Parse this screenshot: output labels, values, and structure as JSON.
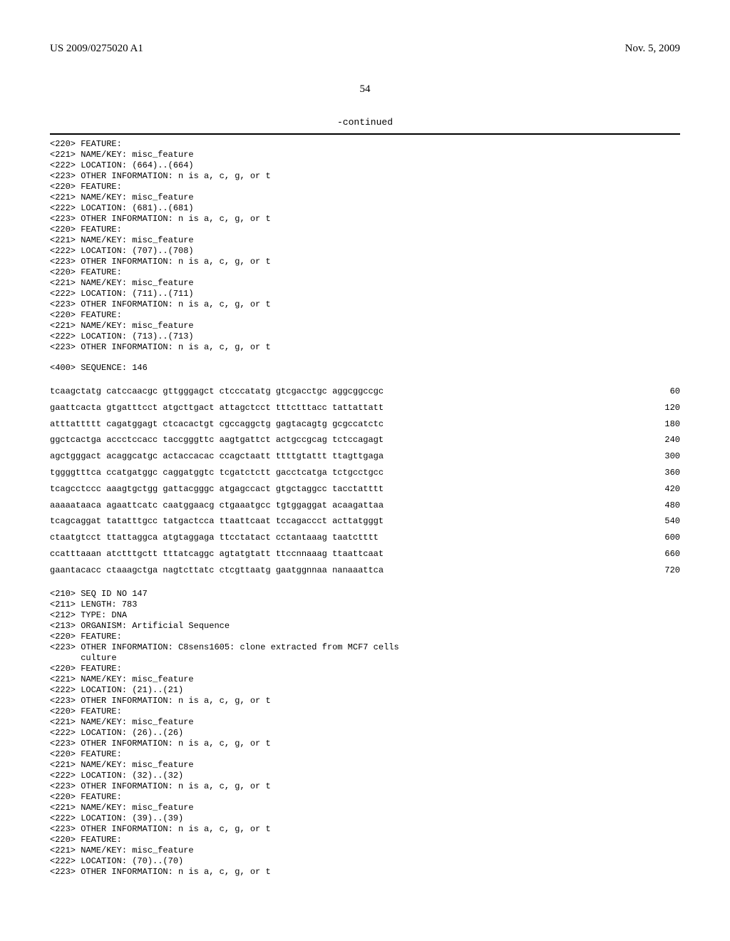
{
  "header": {
    "left": "US 2009/0275020 A1",
    "right": "Nov. 5, 2009"
  },
  "page_number": "54",
  "continued_label": "-continued",
  "features_146": [
    "<220> FEATURE:",
    "<221> NAME/KEY: misc_feature",
    "<222> LOCATION: (664)..(664)",
    "<223> OTHER INFORMATION: n is a, c, g, or t",
    "<220> FEATURE:",
    "<221> NAME/KEY: misc_feature",
    "<222> LOCATION: (681)..(681)",
    "<223> OTHER INFORMATION: n is a, c, g, or t",
    "<220> FEATURE:",
    "<221> NAME/KEY: misc_feature",
    "<222> LOCATION: (707)..(708)",
    "<223> OTHER INFORMATION: n is a, c, g, or t",
    "<220> FEATURE:",
    "<221> NAME/KEY: misc_feature",
    "<222> LOCATION: (711)..(711)",
    "<223> OTHER INFORMATION: n is a, c, g, or t",
    "<220> FEATURE:",
    "<221> NAME/KEY: misc_feature",
    "<222> LOCATION: (713)..(713)",
    "<223> OTHER INFORMATION: n is a, c, g, or t"
  ],
  "sequence_400_label": "<400> SEQUENCE: 146",
  "sequence_146": [
    {
      "seq": "tcaagctatg catccaacgc gttgggagct ctcccatatg gtcgacctgc aggcggccgc",
      "num": "60"
    },
    {
      "seq": "gaattcacta gtgatttcct atgcttgact attagctcct tttctttacc tattattatt",
      "num": "120"
    },
    {
      "seq": "atttattttt cagatggagt ctcacactgt cgccaggctg gagtacagtg gcgccatctc",
      "num": "180"
    },
    {
      "seq": "ggctcactga accctccacc taccgggttc aagtgattct actgccgcag tctccagagt",
      "num": "240"
    },
    {
      "seq": "agctgggact acaggcatgc actaccacac ccagctaatt ttttgtattt ttagttgaga",
      "num": "300"
    },
    {
      "seq": "tggggtttca ccatgatggc caggatggtc tcgatctctt gacctcatga tctgcctgcc",
      "num": "360"
    },
    {
      "seq": "tcagcctccc aaagtgctgg gattacgggc atgagccact gtgctaggcc tacctatttt",
      "num": "420"
    },
    {
      "seq": "aaaaataaca agaattcatc caatggaacg ctgaaatgcc tgtggaggat acaagattaa",
      "num": "480"
    },
    {
      "seq": "tcagcaggat tatatttgcc tatgactcca ttaattcaat tccagaccct acttatgggt",
      "num": "540"
    },
    {
      "seq": "ctaatgtcct ttattaggca atgtaggaga ttcctatact cctantaaag taatctttt",
      "num": "600"
    },
    {
      "seq": "ccatttaaan atctttgctt tttatcaggc agtatgtatt ttccnnaaag ttaattcaat",
      "num": "660"
    },
    {
      "seq": "gaantacacc ctaaagctga nagtcttatc ctcgttaatg gaatggnnaa nanaaattca",
      "num": "720"
    }
  ],
  "seq_147_header": [
    "<210> SEQ ID NO 147",
    "<211> LENGTH: 783",
    "<212> TYPE: DNA",
    "<213> ORGANISM: Artificial Sequence",
    "<220> FEATURE:",
    "<223> OTHER INFORMATION: C8sens1605: clone extracted from MCF7 cells",
    "      culture",
    "<220> FEATURE:",
    "<221> NAME/KEY: misc_feature",
    "<222> LOCATION: (21)..(21)",
    "<223> OTHER INFORMATION: n is a, c, g, or t",
    "<220> FEATURE:",
    "<221> NAME/KEY: misc_feature",
    "<222> LOCATION: (26)..(26)",
    "<223> OTHER INFORMATION: n is a, c, g, or t",
    "<220> FEATURE:",
    "<221> NAME/KEY: misc_feature",
    "<222> LOCATION: (32)..(32)",
    "<223> OTHER INFORMATION: n is a, c, g, or t",
    "<220> FEATURE:",
    "<221> NAME/KEY: misc_feature",
    "<222> LOCATION: (39)..(39)",
    "<223> OTHER INFORMATION: n is a, c, g, or t",
    "<220> FEATURE:",
    "<221> NAME/KEY: misc_feature",
    "<222> LOCATION: (70)..(70)",
    "<223> OTHER INFORMATION: n is a, c, g, or t"
  ]
}
